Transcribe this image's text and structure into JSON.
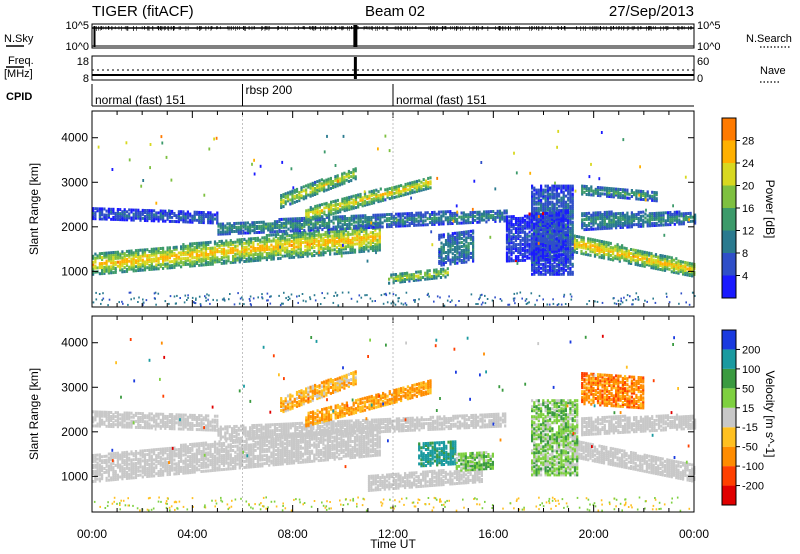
{
  "header": {
    "title": "TIGER (fitACF)",
    "beam": "Beam 02",
    "date": "27/Sep/2013"
  },
  "summary_panels": {
    "nsky": {
      "label": "N.Sky",
      "left_ticks": [
        "10^5",
        "10^0"
      ]
    },
    "nsearch": {
      "label": "N.Search",
      "right_ticks": [
        "10^5",
        "10^0"
      ]
    },
    "freq": {
      "label_line1": "Freq.",
      "label_line2": "[MHz]",
      "left_ticks": [
        "18",
        "8"
      ]
    },
    "nave": {
      "label": "Nave",
      "right_ticks": [
        "60",
        "0"
      ]
    },
    "cpid": {
      "label": "CPID",
      "segments": [
        {
          "name": "normal (fast) 151",
          "start_hour": 0,
          "end_hour": 6.0
        },
        {
          "name": "rbsp 200",
          "start_hour": 6.0,
          "end_hour": 12.0
        },
        {
          "name": "normal (fast) 151",
          "start_hour": 12.0,
          "end_hour": 24.0
        }
      ]
    }
  },
  "x_axis": {
    "label": "Time UT",
    "range_hours": [
      0,
      24
    ],
    "tick_hours": [
      0,
      4,
      8,
      12,
      16,
      20,
      24
    ],
    "tick_labels": [
      "00:00",
      "04:00",
      "08:00",
      "12:00",
      "16:00",
      "20:00",
      "00:00"
    ]
  },
  "colors": {
    "power_scale": [
      "#1a1aff",
      "#2f4fc8",
      "#2a7a8f",
      "#3c9a6a",
      "#7ec040",
      "#d8d820",
      "#ffb000",
      "#ff7a00",
      "#ff3a00",
      "#e00000"
    ],
    "velocity_scale": [
      "#e00000",
      "#ff4000",
      "#ff8c00",
      "#ffc020",
      "#c8c8c8",
      "#7ed040",
      "#3a9a40",
      "#1a9aa0",
      "#1a3adf"
    ]
  },
  "chart_data": [
    {
      "type": "heatmap",
      "name": "Power",
      "xlabel": "Time UT",
      "ylabel": "Slant Range [km]",
      "xlim": [
        0,
        24
      ],
      "ylim": [
        200,
        4600
      ],
      "yticks": [
        1000,
        2000,
        3000,
        4000
      ],
      "colorbar": {
        "label": "Power [dB]",
        "range": [
          0,
          32
        ],
        "ticks": [
          4,
          8,
          12,
          16,
          20,
          24,
          28
        ]
      },
      "bands": [
        {
          "t0": 0.0,
          "t1": 11.5,
          "r0a": 900,
          "r1a": 1350,
          "r0b": 1450,
          "r1b": 2050,
          "level": 26
        },
        {
          "t0": 0.0,
          "t1": 5.0,
          "r0a": 2150,
          "r1a": 2380,
          "r0b": 2050,
          "r1b": 2280,
          "level": 8
        },
        {
          "t0": 5.0,
          "t1": 11.0,
          "r0a": 1800,
          "r1a": 2050,
          "r0b": 1950,
          "r1b": 2250,
          "level": 14
        },
        {
          "t0": 8.5,
          "t1": 13.5,
          "r0a": 2100,
          "r1a": 2400,
          "r0b": 2850,
          "r1b": 3100,
          "level": 24
        },
        {
          "t0": 7.5,
          "t1": 10.5,
          "r0a": 2400,
          "r1a": 2700,
          "r0b": 3050,
          "r1b": 3300,
          "level": 22
        },
        {
          "t0": 11.0,
          "t1": 16.5,
          "r0a": 1950,
          "r1a": 2250,
          "r0b": 2100,
          "r1b": 2350,
          "level": 12
        },
        {
          "t0": 11.8,
          "t1": 14.2,
          "r0a": 700,
          "r1a": 900,
          "r0b": 850,
          "r1b": 1050,
          "level": 21
        },
        {
          "t0": 13.8,
          "t1": 15.2,
          "r0a": 1100,
          "r1a": 1800,
          "r0b": 1200,
          "r1b": 1900,
          "level": 12
        },
        {
          "t0": 19.2,
          "t1": 24.0,
          "r0a": 1400,
          "r1a": 1800,
          "r0b": 850,
          "r1b": 1150,
          "level": 26
        },
        {
          "t0": 19.5,
          "t1": 24.0,
          "r0a": 1900,
          "r1a": 2300,
          "r0b": 2050,
          "r1b": 2300,
          "level": 13
        },
        {
          "t0": 19.5,
          "t1": 22.5,
          "r0a": 2700,
          "r1a": 2900,
          "r0b": 2550,
          "r1b": 2750,
          "level": 15
        },
        {
          "t0": 17.5,
          "t1": 19.2,
          "r0a": 900,
          "r1a": 2900,
          "r0b": 900,
          "r1b": 2900,
          "level": 10
        },
        {
          "t0": 16.5,
          "t1": 19.0,
          "r0a": 1200,
          "r1a": 2200,
          "r0b": 1250,
          "r1b": 2350,
          "level": 6
        }
      ]
    },
    {
      "type": "heatmap",
      "name": "Velocity",
      "xlabel": "Time UT",
      "ylabel": "Slant Range [km]",
      "xlim": [
        0,
        24
      ],
      "ylim": [
        200,
        4600
      ],
      "yticks": [
        1000,
        2000,
        3000,
        4000
      ],
      "colorbar": {
        "label": "Velocity [m s^-1]",
        "range": [
          -250,
          250
        ],
        "ticks": [
          -200,
          -100,
          -50,
          -15,
          15,
          50,
          100,
          200
        ]
      },
      "bands": [
        {
          "t0": 0.0,
          "t1": 11.5,
          "r0a": 850,
          "r1a": 1450,
          "r0b": 1450,
          "r1b": 2150,
          "level": 0
        },
        {
          "t0": 0.0,
          "t1": 5.0,
          "r0a": 2100,
          "r1a": 2450,
          "r0b": 2000,
          "r1b": 2350,
          "level": 0
        },
        {
          "t0": 5.0,
          "t1": 16.5,
          "r0a": 1800,
          "r1a": 2100,
          "r0b": 2100,
          "r1b": 2400,
          "level": 0
        },
        {
          "t0": 11.0,
          "t1": 15.5,
          "r0a": 650,
          "r1a": 1000,
          "r0b": 850,
          "r1b": 1150,
          "level": 0
        },
        {
          "t0": 19.2,
          "t1": 24.0,
          "r0a": 1400,
          "r1a": 1800,
          "r0b": 850,
          "r1b": 1250,
          "level": 0
        },
        {
          "t0": 19.5,
          "t1": 24.0,
          "r0a": 1900,
          "r1a": 2300,
          "r0b": 2050,
          "r1b": 2350,
          "level": 0
        },
        {
          "t0": 8.5,
          "t1": 13.5,
          "r0a": 2100,
          "r1a": 2400,
          "r0b": 2850,
          "r1b": 3150,
          "level": -60
        },
        {
          "t0": 7.5,
          "t1": 10.5,
          "r0a": 2400,
          "r1a": 2750,
          "r0b": 3050,
          "r1b": 3350,
          "level": -40
        },
        {
          "t0": 13.0,
          "t1": 14.5,
          "r0a": 1200,
          "r1a": 1700,
          "r0b": 1250,
          "r1b": 1750,
          "level": 120
        },
        {
          "t0": 14.5,
          "t1": 16.0,
          "r0a": 1100,
          "r1a": 1500,
          "r0b": 1150,
          "r1b": 1500,
          "level": 40
        },
        {
          "t0": 17.5,
          "t1": 19.3,
          "r0a": 1000,
          "r1a": 2700,
          "r0b": 1000,
          "r1b": 2700,
          "level": 30
        },
        {
          "t0": 19.5,
          "t1": 22.0,
          "r0a": 2600,
          "r1a": 3300,
          "r0b": 2500,
          "r1b": 3200,
          "level": -80
        }
      ]
    }
  ]
}
